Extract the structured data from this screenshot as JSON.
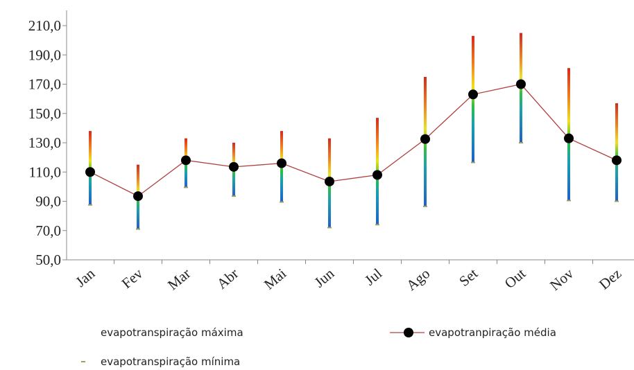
{
  "chart_data": {
    "type": "line",
    "categories": [
      "Jan",
      "Fev",
      "Mar",
      "Abr",
      "Mai",
      "Jun",
      "Jul",
      "Ago",
      "Set",
      "Out",
      "Nov",
      "Dez"
    ],
    "series": [
      {
        "name": "evapotranspiração máxima",
        "color": "#d42a1e",
        "values": [
          138,
          115,
          133,
          130,
          138,
          133,
          147,
          175,
          203,
          205,
          181,
          157
        ]
      },
      {
        "name": "evapotranpiração média",
        "color": "#b04040",
        "values": [
          110,
          93.5,
          118,
          113.5,
          116,
          103.5,
          108,
          132.5,
          163,
          170,
          133,
          118
        ]
      },
      {
        "name": "evapotranspiração mínima",
        "color": "#a0a060",
        "values": [
          87.5,
          71,
          99.5,
          93.5,
          89.5,
          72,
          74,
          86.5,
          116.5,
          130,
          90.5,
          90
        ]
      }
    ],
    "ylim": [
      50,
      210
    ],
    "yticks": [
      {
        "value": 50,
        "label": "50,0"
      },
      {
        "value": 70,
        "label": "70,0"
      },
      {
        "value": 90,
        "label": "90,0"
      },
      {
        "value": 110,
        "label": "110,0"
      },
      {
        "value": 130,
        "label": "130,0"
      },
      {
        "value": 150,
        "label": "150,0"
      },
      {
        "value": 170,
        "label": "170,0"
      },
      {
        "value": 190,
        "label": "190,0"
      },
      {
        "value": 210,
        "label": "210,0"
      }
    ],
    "grid": false
  }
}
